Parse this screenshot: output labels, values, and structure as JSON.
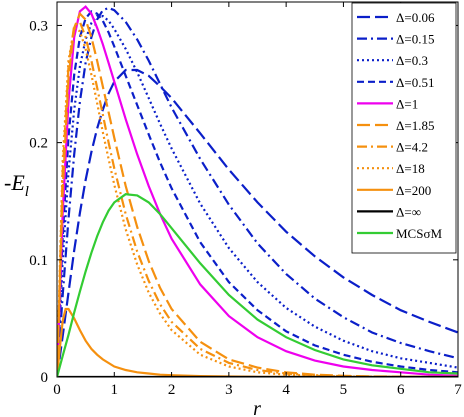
{
  "chart_data": {
    "type": "line",
    "title": "",
    "xlabel": "r",
    "ylabel": "-E",
    "ylabel_subscript": "l",
    "xlim": [
      0,
      7
    ],
    "ylim": [
      0,
      0.32
    ],
    "xticks": [
      "0",
      "1",
      "2",
      "3",
      "4",
      "5",
      "6",
      "7"
    ],
    "yticks": [
      "0",
      "0.1",
      "0.2",
      "0.3"
    ],
    "grid": false,
    "legend_position": "top-right",
    "series": [
      {
        "name": "Δ=0.06",
        "color": "#0b1fc9",
        "dash": "long-dash",
        "x": [
          0,
          0.1,
          0.2,
          0.3,
          0.4,
          0.5,
          0.6,
          0.7,
          0.8,
          0.9,
          1.0,
          1.2,
          1.4,
          1.6,
          1.8,
          2.0,
          2.5,
          3.0,
          3.5,
          4.0,
          4.5,
          5.0,
          5.5,
          6.0,
          6.5,
          7.0
        ],
        "y": [
          0,
          0.035,
          0.072,
          0.108,
          0.14,
          0.168,
          0.192,
          0.212,
          0.228,
          0.242,
          0.252,
          0.262,
          0.262,
          0.257,
          0.248,
          0.238,
          0.208,
          0.177,
          0.149,
          0.124,
          0.103,
          0.085,
          0.07,
          0.057,
          0.047,
          0.038
        ]
      },
      {
        "name": "Δ=0.15",
        "color": "#0b1fc9",
        "dash": "dash-dot",
        "x": [
          0,
          0.1,
          0.2,
          0.3,
          0.4,
          0.5,
          0.6,
          0.7,
          0.8,
          0.9,
          1.0,
          1.2,
          1.4,
          1.6,
          1.8,
          2.0,
          2.5,
          3.0,
          3.5,
          4.0,
          4.5,
          5.0,
          5.5,
          6.0,
          6.5,
          7.0
        ],
        "y": [
          0,
          0.07,
          0.135,
          0.19,
          0.235,
          0.268,
          0.29,
          0.305,
          0.313,
          0.315,
          0.313,
          0.303,
          0.288,
          0.27,
          0.25,
          0.23,
          0.186,
          0.147,
          0.114,
          0.088,
          0.067,
          0.051,
          0.038,
          0.029,
          0.022,
          0.016
        ]
      },
      {
        "name": "Δ=0.3",
        "color": "#0b1fc9",
        "dash": "dotted",
        "x": [
          0,
          0.1,
          0.2,
          0.3,
          0.4,
          0.5,
          0.6,
          0.7,
          0.8,
          0.9,
          1.0,
          1.2,
          1.4,
          1.6,
          1.8,
          2.0,
          2.5,
          3.0,
          3.5,
          4.0,
          4.5,
          5.0,
          5.5,
          6.0,
          6.5,
          7.0
        ],
        "y": [
          0,
          0.1,
          0.175,
          0.228,
          0.265,
          0.288,
          0.302,
          0.308,
          0.308,
          0.304,
          0.297,
          0.28,
          0.26,
          0.238,
          0.216,
          0.195,
          0.148,
          0.11,
          0.081,
          0.059,
          0.043,
          0.031,
          0.022,
          0.016,
          0.012,
          0.008
        ]
      },
      {
        "name": "Δ=0.51",
        "color": "#0b1fc9",
        "dash": "dash",
        "x": [
          0,
          0.1,
          0.2,
          0.3,
          0.4,
          0.5,
          0.6,
          0.7,
          0.8,
          0.9,
          1.0,
          1.2,
          1.4,
          1.6,
          1.8,
          2.0,
          2.5,
          3.0,
          3.5,
          4.0,
          4.5,
          5.0,
          5.5,
          6.0,
          6.5,
          7.0
        ],
        "y": [
          0,
          0.12,
          0.205,
          0.258,
          0.29,
          0.306,
          0.312,
          0.31,
          0.304,
          0.294,
          0.282,
          0.257,
          0.232,
          0.207,
          0.183,
          0.161,
          0.115,
          0.081,
          0.057,
          0.039,
          0.027,
          0.019,
          0.013,
          0.009,
          0.006,
          0.004
        ]
      },
      {
        "name": "Δ=1",
        "color": "#ee00ee",
        "dash": "solid",
        "x": [
          0,
          0.1,
          0.2,
          0.3,
          0.4,
          0.5,
          0.6,
          0.7,
          0.8,
          0.9,
          1.0,
          1.2,
          1.4,
          1.6,
          1.8,
          2.0,
          2.5,
          3.0,
          3.5,
          4.0,
          4.5,
          5.0,
          5.5,
          6.0,
          6.5,
          7.0
        ],
        "y": [
          0,
          0.14,
          0.235,
          0.29,
          0.312,
          0.316,
          0.31,
          0.298,
          0.284,
          0.268,
          0.252,
          0.22,
          0.19,
          0.163,
          0.139,
          0.118,
          0.079,
          0.052,
          0.034,
          0.022,
          0.014,
          0.009,
          0.006,
          0.004,
          0.002,
          0.001
        ]
      },
      {
        "name": "Δ=1.85",
        "color": "#f5900f",
        "dash": "long-dash",
        "x": [
          0,
          0.1,
          0.2,
          0.3,
          0.4,
          0.5,
          0.6,
          0.7,
          0.8,
          0.9,
          1.0,
          1.2,
          1.4,
          1.6,
          1.8,
          2.0,
          2.5,
          3.0,
          3.5,
          4.0,
          4.5,
          5.0,
          5.5,
          6.0,
          6.5,
          7.0
        ],
        "y": [
          0,
          0.16,
          0.255,
          0.298,
          0.31,
          0.305,
          0.29,
          0.27,
          0.248,
          0.226,
          0.204,
          0.163,
          0.128,
          0.099,
          0.076,
          0.058,
          0.03,
          0.015,
          0.008,
          0.004,
          0.002,
          0.001,
          0.0005,
          0.0003,
          0.0001,
          0
        ]
      },
      {
        "name": "Δ=4.2",
        "color": "#f5900f",
        "dash": "dash-dot",
        "x": [
          0,
          0.1,
          0.2,
          0.3,
          0.4,
          0.5,
          0.6,
          0.7,
          0.8,
          0.9,
          1.0,
          1.2,
          1.4,
          1.6,
          1.8,
          2.0,
          2.5,
          3.0,
          3.5,
          4.0,
          4.5,
          5.0,
          5.5,
          6.0,
          6.5,
          7.0
        ],
        "y": [
          0,
          0.175,
          0.265,
          0.3,
          0.303,
          0.29,
          0.27,
          0.247,
          0.224,
          0.2,
          0.178,
          0.139,
          0.107,
          0.082,
          0.062,
          0.047,
          0.024,
          0.012,
          0.006,
          0.003,
          0.0015,
          0.0007,
          0.0003,
          0.0001,
          0,
          0
        ]
      },
      {
        "name": "Δ=18",
        "color": "#f5900f",
        "dash": "dotted",
        "x": [
          0,
          0.1,
          0.2,
          0.3,
          0.4,
          0.5,
          0.6,
          0.7,
          0.8,
          0.9,
          1.0,
          1.2,
          1.4,
          1.6,
          1.8,
          2.0,
          2.5,
          3.0,
          3.5,
          4.0,
          4.5,
          5.0,
          5.5,
          6.0,
          6.5,
          7.0
        ],
        "y": [
          0,
          0.185,
          0.27,
          0.298,
          0.295,
          0.28,
          0.258,
          0.234,
          0.209,
          0.186,
          0.164,
          0.126,
          0.096,
          0.072,
          0.054,
          0.04,
          0.019,
          0.009,
          0.004,
          0.002,
          0.001,
          0.0004,
          0.0002,
          0.0001,
          0,
          0
        ]
      },
      {
        "name": "Δ=200",
        "color": "#f5900f",
        "dash": "solid",
        "x": [
          0,
          0.05,
          0.1,
          0.15,
          0.2,
          0.3,
          0.4,
          0.5,
          0.6,
          0.7,
          0.8,
          1.0,
          1.2,
          1.4,
          1.6,
          1.8,
          2.0,
          2.5,
          3.0,
          3.5,
          4.0,
          5.0,
          6.0,
          7.0
        ],
        "y": [
          0,
          0.025,
          0.048,
          0.058,
          0.058,
          0.05,
          0.04,
          0.031,
          0.024,
          0.019,
          0.015,
          0.009,
          0.006,
          0.004,
          0.003,
          0.002,
          0.0015,
          0.0008,
          0.0004,
          0.0002,
          0.0001,
          0,
          0,
          0
        ]
      },
      {
        "name": "Δ=∞",
        "color": "#000000",
        "dash": "solid",
        "x": [
          0,
          7
        ],
        "y": [
          0,
          0
        ]
      },
      {
        "name": "MCSσM",
        "color": "#33cc33",
        "dash": "solid",
        "x": [
          0,
          0.1,
          0.2,
          0.3,
          0.4,
          0.5,
          0.6,
          0.7,
          0.8,
          0.9,
          1.0,
          1.2,
          1.4,
          1.6,
          1.8,
          2.0,
          2.5,
          3.0,
          3.5,
          4.0,
          4.5,
          5.0,
          5.5,
          6.0,
          6.5,
          7.0
        ],
        "y": [
          0,
          0.018,
          0.036,
          0.055,
          0.073,
          0.09,
          0.106,
          0.12,
          0.132,
          0.142,
          0.149,
          0.156,
          0.155,
          0.149,
          0.139,
          0.127,
          0.097,
          0.07,
          0.049,
          0.034,
          0.023,
          0.015,
          0.01,
          0.007,
          0.004,
          0.003
        ]
      }
    ]
  }
}
